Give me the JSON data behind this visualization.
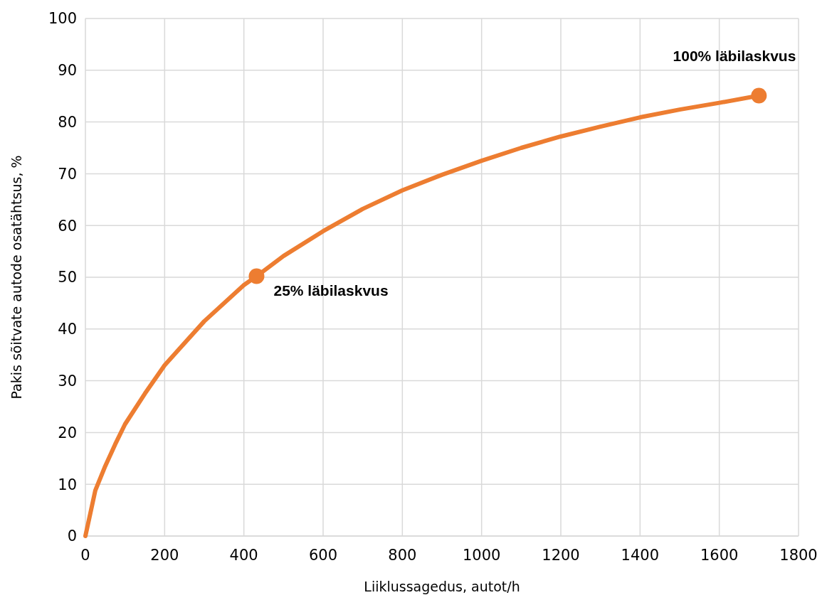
{
  "chart_data": {
    "type": "line",
    "xlabel": "Liiklussagedus, autot/h",
    "ylabel": "Pakis sõitvate autode osatähtsus, %",
    "xlim": [
      0,
      1800
    ],
    "xticks": [
      0,
      200,
      400,
      600,
      800,
      1000,
      1200,
      1400,
      1600,
      1800
    ],
    "ylim": [
      0,
      100
    ],
    "yticks": [
      0,
      10,
      20,
      30,
      40,
      50,
      60,
      70,
      80,
      90,
      100
    ],
    "grid": true,
    "line_style": "solid",
    "series": [
      {
        "color": "#ed7d31",
        "marker": "none",
        "x": [
          0,
          25,
          50,
          75,
          100,
          150,
          200,
          300,
          400,
          432,
          500,
          600,
          700,
          800,
          900,
          1000,
          1100,
          1200,
          1300,
          1400,
          1500,
          1600,
          1700
        ],
        "values": [
          0,
          8.8,
          13.5,
          17.7,
          21.6,
          27.5,
          33,
          41.5,
          48.5,
          50.2,
          54.1,
          58.9,
          63.2,
          66.8,
          69.8,
          72.5,
          75,
          77.2,
          79.1,
          80.9,
          82.4,
          83.7,
          85.1
        ]
      },
      {
        "type": "scatter",
        "color": "#ed7d31",
        "marker": "circle",
        "x": [
          432,
          1700
        ],
        "values": [
          50.2,
          85.1
        ]
      }
    ],
    "annotations": [
      {
        "text": "25% läbilaskvus",
        "x": 432,
        "y": 50.2
      },
      {
        "text": "100% läbilaskvus",
        "x": 1700,
        "y": 85.1
      }
    ]
  }
}
